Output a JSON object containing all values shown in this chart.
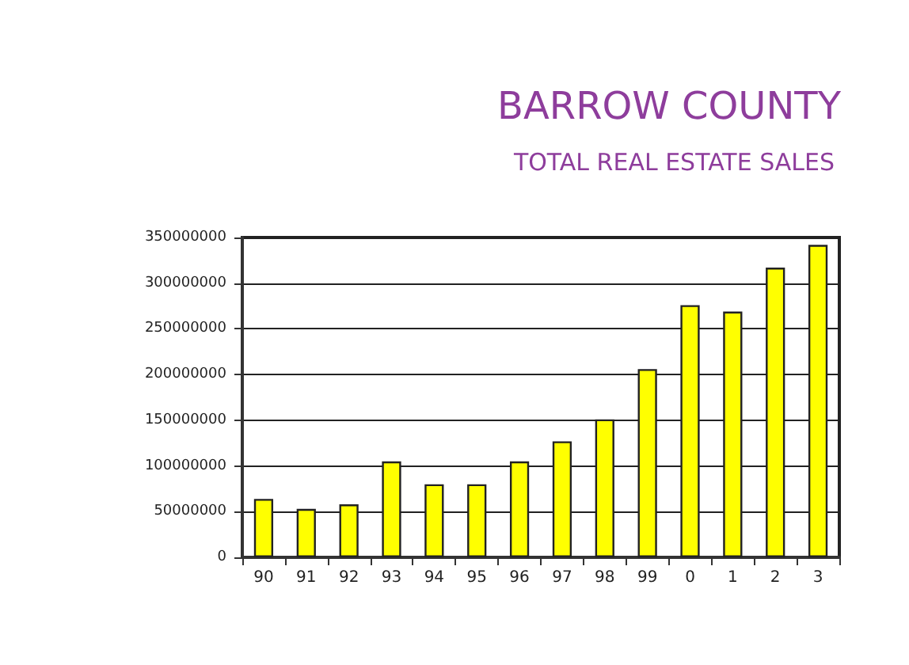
{
  "chart_data": {
    "type": "bar",
    "title": "BARROW COUNTY",
    "subtitle": "TOTAL REAL ESTATE SALES",
    "categories": [
      "90",
      "91",
      "92",
      "93",
      "94",
      "95",
      "96",
      "97",
      "98",
      "99",
      "0",
      "1",
      "2",
      "3"
    ],
    "values": [
      64000000,
      53000000,
      58000000,
      105000000,
      80000000,
      80000000,
      105000000,
      127000000,
      151000000,
      206000000,
      276000000,
      269000000,
      317000000,
      342000000
    ],
    "color": "#ffff00",
    "ylim": [
      0,
      350000000
    ],
    "yticks": [
      0,
      50000000,
      100000000,
      150000000,
      200000000,
      250000000,
      300000000,
      350000000
    ],
    "grid": "y"
  }
}
